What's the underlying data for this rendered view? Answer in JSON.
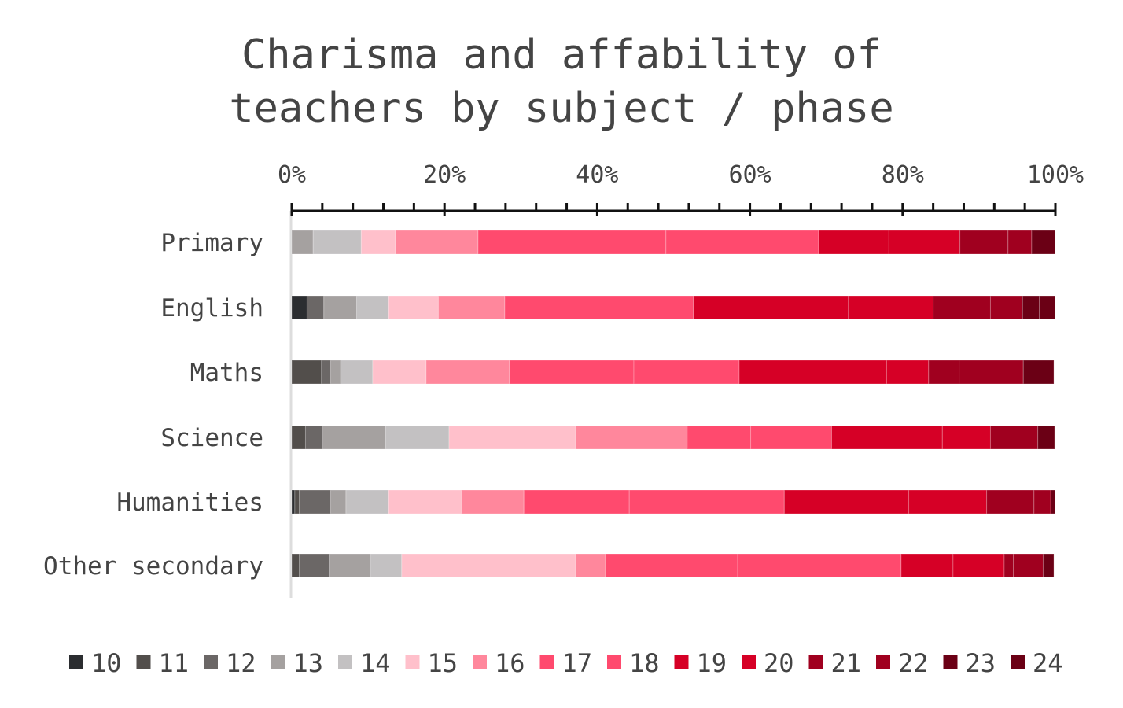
{
  "chart_data": {
    "type": "bar",
    "orientation": "horizontal",
    "stacked": true,
    "title_lines": [
      "Charisma and affability of",
      "teachers by subject / phase"
    ],
    "xlabel": "",
    "ylabel": "",
    "xlim": [
      0,
      100
    ],
    "x_ticks": [
      "0%",
      "20%",
      "40%",
      "60%",
      "80%",
      "100%"
    ],
    "legend_position": "bottom",
    "grid": false,
    "categories": [
      "Primary",
      "English",
      "Maths",
      "Science",
      "Humanities",
      "Other secondary"
    ],
    "series": [
      {
        "name": "10",
        "color": "#2b2d30",
        "values": [
          0,
          2.0,
          0,
          0,
          0.4,
          0
        ]
      },
      {
        "name": "11",
        "color": "#524e4b",
        "values": [
          0,
          0,
          3.9,
          1.8,
          0.6,
          1.0
        ]
      },
      {
        "name": "12",
        "color": "#6b6766",
        "values": [
          0,
          2.2,
          1.2,
          2.2,
          4.1,
          3.9
        ]
      },
      {
        "name": "13",
        "color": "#a5a1a0",
        "values": [
          2.8,
          4.3,
          1.3,
          8.3,
          2.0,
          5.4
        ]
      },
      {
        "name": "14",
        "color": "#c3c1c2",
        "values": [
          6.3,
          4.2,
          4.2,
          8.3,
          5.6,
          4.1
        ]
      },
      {
        "name": "15",
        "color": "#ffc0cb",
        "values": [
          4.5,
          6.5,
          7.0,
          16.6,
          9.5,
          22.8
        ]
      },
      {
        "name": "16",
        "color": "#ff879c",
        "values": [
          10.8,
          8.7,
          10.9,
          14.6,
          8.2,
          3.9
        ]
      },
      {
        "name": "17",
        "color": "#ff4a6e",
        "values": [
          24.6,
          24.7,
          16.3,
          8.3,
          13.8,
          17.3
        ]
      },
      {
        "name": "18",
        "color": "#ff4a6e",
        "values": [
          20.0,
          0,
          13.8,
          10.6,
          20.3,
          21.4
        ]
      },
      {
        "name": "19",
        "color": "#d60026",
        "values": [
          9.2,
          20.3,
          19.3,
          14.5,
          16.3,
          6.8
        ]
      },
      {
        "name": "20",
        "color": "#d60026",
        "values": [
          9.3,
          11.1,
          5.5,
          6.3,
          10.2,
          6.7
        ]
      },
      {
        "name": "21",
        "color": "#a0001f",
        "values": [
          6.3,
          7.5,
          4.0,
          6.2,
          6.2,
          1.2
        ]
      },
      {
        "name": "22",
        "color": "#a0001f",
        "values": [
          3.1,
          4.2,
          8.4,
          0,
          2.2,
          3.9
        ]
      },
      {
        "name": "23",
        "color": "#6b0015",
        "values": [
          3.1,
          2.2,
          4.0,
          2.2,
          0.6,
          1.4
        ]
      },
      {
        "name": "24",
        "color": "#6b0015",
        "values": [
          0,
          2.1,
          0,
          0,
          0,
          0
        ]
      }
    ]
  }
}
